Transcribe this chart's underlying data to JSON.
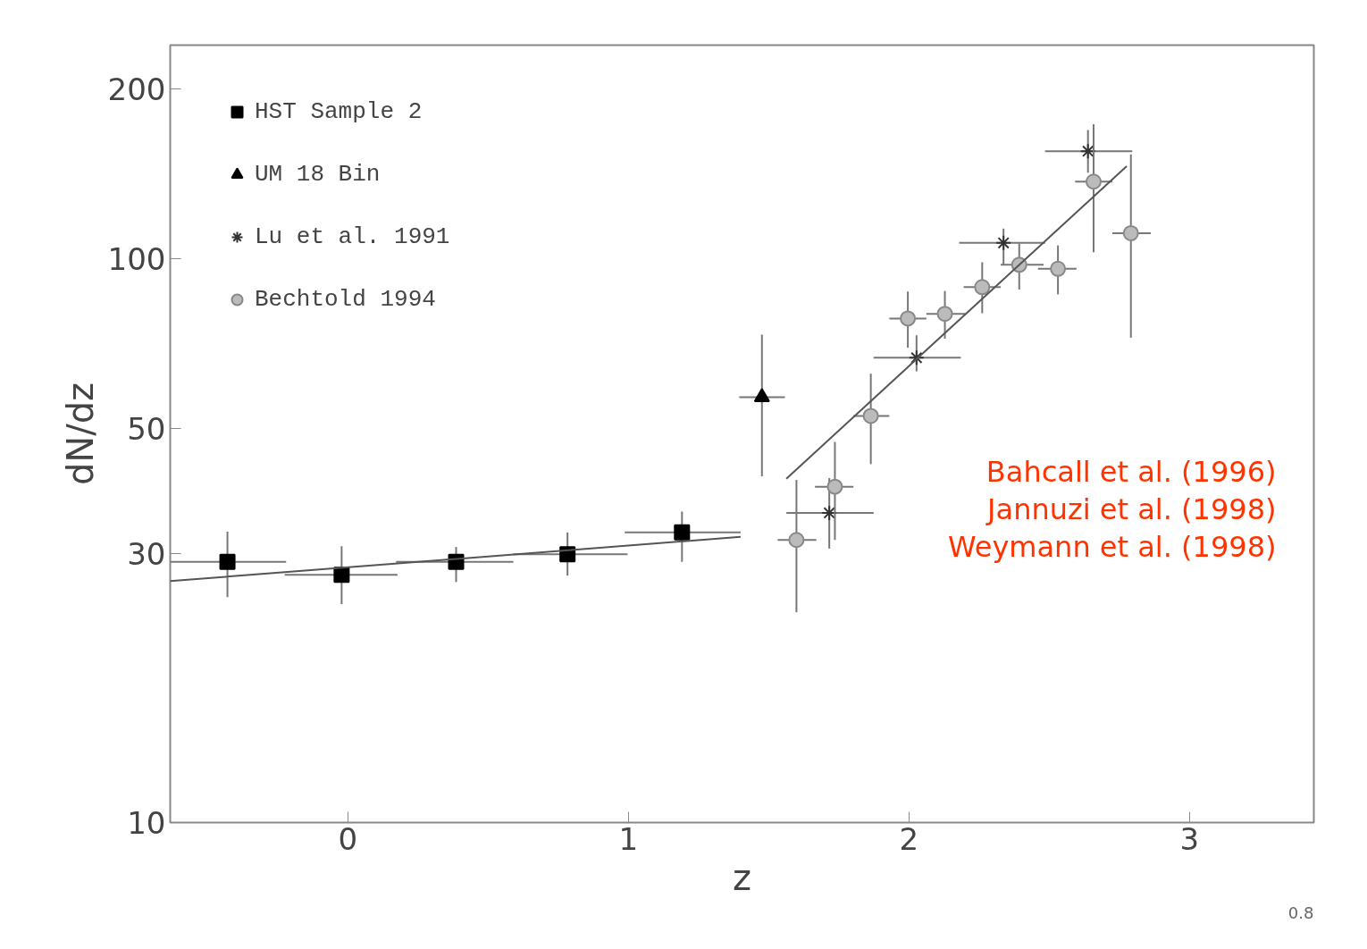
{
  "chart_data": {
    "type": "scatter",
    "xlabel": "z",
    "ylabel": "dN/dz",
    "xlim": [
      -0.633,
      3.443
    ],
    "ylim": [
      10,
      239
    ],
    "log": "y",
    "grid": false,
    "legend": "top left",
    "xticks": [
      0,
      1,
      2,
      3
    ],
    "yticks": [
      10,
      30,
      50,
      100,
      200
    ],
    "series": [
      {
        "name": "HST Sample 2",
        "type": "scatter",
        "marker": "square",
        "color": "#000000",
        "x": [
          -0.429,
          -0.022,
          0.386,
          0.783,
          1.191
        ],
        "values": [
          29.0,
          27.5,
          29.0,
          29.9,
          32.7
        ],
        "errors": [
          [
            25.1,
            32.8
          ],
          [
            24.4,
            30.9
          ],
          [
            26.7,
            30.8
          ],
          [
            27.4,
            32.7
          ],
          [
            29.0,
            35.6
          ]
        ],
        "xerrors": [
          [
            -0.633,
            -0.22
          ],
          [
            -0.225,
            0.177
          ],
          [
            0.172,
            0.59
          ],
          [
            0.59,
            0.997
          ],
          [
            0.987,
            1.4
          ]
        ]
      },
      {
        "name": "UM 18 Bin",
        "type": "scatter",
        "marker": "triangle",
        "color": "#000000",
        "x": [
          1.476
        ],
        "values": [
          56.8
        ],
        "errors": [
          [
            41.1,
            73.3
          ]
        ],
        "xerrors": [
          [
            1.395,
            1.558
          ]
        ]
      },
      {
        "name": "Lu et al. 1991",
        "type": "scatter",
        "marker": "cross",
        "color": "#333333",
        "x": [
          1.716,
          2.027,
          2.337,
          2.638
        ],
        "values": [
          35.4,
          66.7,
          106.6,
          155
        ],
        "errors": [
          [
            30.6,
            40.8
          ],
          [
            63.1,
            73.1
          ],
          [
            97.5,
            113
          ],
          [
            142,
            169
          ]
        ],
        "xerrors": [
          [
            1.563,
            1.874
          ],
          [
            1.874,
            2.185
          ],
          [
            2.179,
            2.485
          ],
          [
            2.485,
            2.796
          ]
        ]
      },
      {
        "name": "Bechtold 1994",
        "type": "scatter",
        "marker": "circle",
        "color": "#888888",
        "x": [
          1.599,
          1.736,
          1.864,
          1.996,
          2.128,
          2.261,
          2.393,
          2.531,
          2.658,
          2.791
        ],
        "values": [
          31.7,
          39.4,
          52.6,
          78.3,
          79.8,
          89.0,
          97.5,
          95.9,
          136.9,
          110.9
        ],
        "errors": [
          [
            23.6,
            40.5
          ],
          [
            31.7,
            47.3
          ],
          [
            43.2,
            62.5
          ],
          [
            69.5,
            87.4
          ],
          [
            72.1,
            87.6
          ],
          [
            80.0,
            98.5
          ],
          [
            88.1,
            106.4
          ],
          [
            86.4,
            105.5
          ],
          [
            102.6,
            173
          ],
          [
            72.4,
            153
          ]
        ],
        "xerrors": [
          [
            1.532,
            1.67
          ],
          [
            1.665,
            1.802
          ],
          [
            1.802,
            1.93
          ],
          [
            1.93,
            2.062
          ],
          [
            2.062,
            2.2
          ],
          [
            2.195,
            2.327
          ],
          [
            2.327,
            2.48
          ],
          [
            2.46,
            2.597
          ],
          [
            2.592,
            2.725
          ],
          [
            2.725,
            2.862
          ]
        ]
      },
      {
        "type": "line",
        "color": "#555555",
        "x": [
          -0.633,
          1.4
        ],
        "values": [
          26.8,
          32.1
        ]
      },
      {
        "type": "line",
        "color": "#555555",
        "x": [
          1.563,
          2.776
        ],
        "values": [
          40.7,
          145.8
        ]
      }
    ],
    "annotations": [
      "Bahcall et al. (1996)",
      "Jannuzi et al. (1998)",
      "Weymann et al. (1998)",
      "0.8"
    ]
  }
}
